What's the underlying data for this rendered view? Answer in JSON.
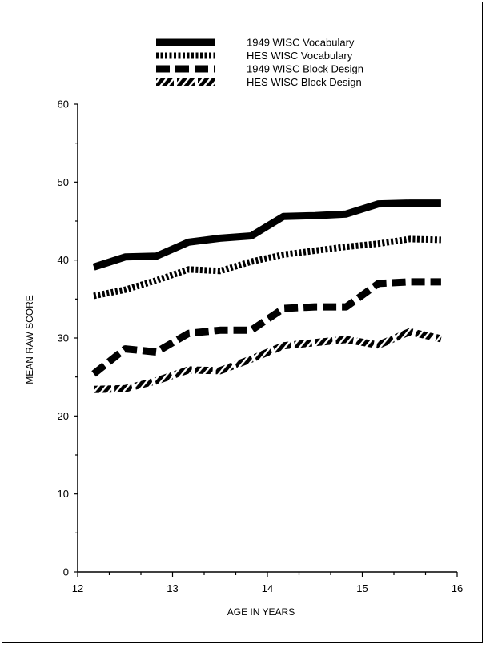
{
  "chart_data": {
    "type": "line",
    "title": "",
    "xlabel": "AGE IN YEARS",
    "ylabel": "MEAN RAW SCORE",
    "xlim": [
      12,
      16
    ],
    "ylim": [
      0,
      60
    ],
    "x_ticks": [
      12,
      13,
      14,
      15,
      16
    ],
    "y_ticks": [
      0,
      10,
      20,
      30,
      40,
      50,
      60
    ],
    "grid": false,
    "legend_position": "top-center",
    "x": [
      12.17,
      12.5,
      12.83,
      13.17,
      13.5,
      13.83,
      14.17,
      14.5,
      14.83,
      15.17,
      15.5,
      15.83
    ],
    "series": [
      {
        "name": "1949 WISC Vocabulary",
        "style": "solid",
        "values": [
          39.1,
          40.4,
          40.5,
          42.3,
          42.8,
          43.1,
          45.6,
          45.7,
          45.9,
          47.2,
          47.3,
          47.3
        ]
      },
      {
        "name": "HES WISC Vocabulary",
        "style": "dotted",
        "values": [
          35.4,
          36.2,
          37.4,
          38.8,
          38.6,
          39.8,
          40.7,
          41.2,
          41.7,
          42.1,
          42.7,
          42.6
        ]
      },
      {
        "name": "1949 WISC Block Design",
        "style": "dashed",
        "values": [
          25.4,
          28.6,
          28.2,
          30.6,
          31.0,
          31.0,
          33.8,
          34.0,
          34.0,
          37.0,
          37.2,
          37.2
        ]
      },
      {
        "name": "HES WISC Block Design",
        "style": "hatched",
        "values": [
          23.4,
          23.5,
          24.5,
          25.9,
          25.8,
          27.3,
          29.0,
          29.4,
          29.8,
          29.1,
          30.8,
          29.9
        ]
      }
    ]
  }
}
